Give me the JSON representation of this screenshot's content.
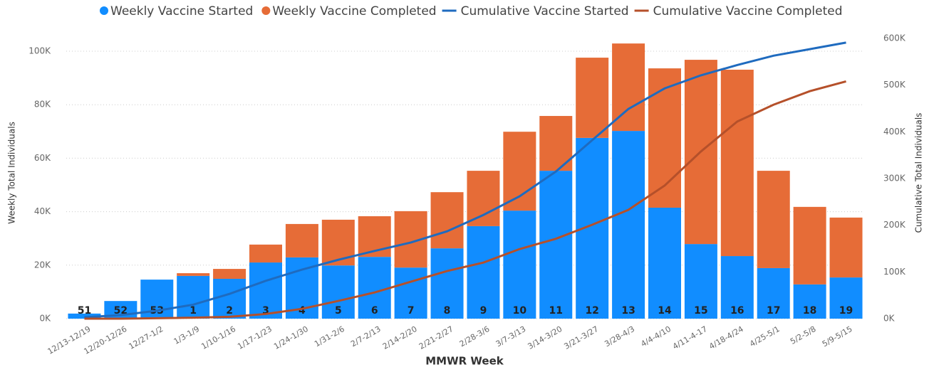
{
  "chart_data": {
    "type": "bar_line",
    "x_label": "MMWR Week",
    "y_label": "Weekly Total Individuals",
    "y2_label": "Cumulative Total Individuals",
    "categories": [
      "12/13-12/19",
      "12/20-12/26",
      "12/27-1/2",
      "1/3-1/9",
      "1/10-1/16",
      "1/17-1/23",
      "1/24-1/30",
      "1/31-2/6",
      "2/7-2/13",
      "2/14-2/20",
      "2/21-2/27",
      "2/28-3/6",
      "3/7-3/13",
      "3/14-3/20",
      "3/21-3/27",
      "3/28-4/3",
      "4/4-4/10",
      "4/11-4-17",
      "4/18-4/24",
      "4/25-5/1",
      "5/2-5/8",
      "5/9-5/15"
    ],
    "week_labels": [
      "51",
      "52",
      "53",
      "1",
      "2",
      "3",
      "4",
      "5",
      "6",
      "7",
      "8",
      "9",
      "10",
      "11",
      "12",
      "13",
      "14",
      "15",
      "16",
      "17",
      "18",
      "19"
    ],
    "series": [
      {
        "name": "Weekly Vaccine Started",
        "kind": "bar",
        "color": "#118dff",
        "values": [
          1900,
          6600,
          14600,
          16000,
          14900,
          21000,
          22900,
          19900,
          23100,
          19100,
          26300,
          34600,
          40400,
          55300,
          67600,
          70200,
          41500,
          27900,
          23400,
          18900,
          12800,
          15400
        ]
      },
      {
        "name": "Weekly Vaccine Completed",
        "kind": "bar",
        "color": "#e66c37",
        "values": [
          0,
          0,
          0,
          1000,
          3700,
          6700,
          12500,
          17100,
          15200,
          21100,
          21000,
          20700,
          29500,
          20500,
          30000,
          32700,
          52100,
          68900,
          69700,
          36400,
          29000,
          22400
        ]
      },
      {
        "name": "Cumulative Vaccine Started",
        "kind": "line",
        "axis": "y2",
        "color": "#1f6bbf",
        "values": [
          3000,
          7600,
          17000,
          30000,
          53000,
          81000,
          105000,
          126000,
          145000,
          163000,
          187000,
          222000,
          262000,
          315000,
          382000,
          449000,
          493000,
          521000,
          543000,
          563000,
          577000,
          591000
        ]
      },
      {
        "name": "Cumulative Vaccine Completed",
        "kind": "line",
        "axis": "y2",
        "color": "#b5502a",
        "values": [
          0,
          0,
          1000,
          2000,
          4000,
          10000,
          21000,
          38000,
          56000,
          79000,
          102000,
          120000,
          149000,
          171000,
          201000,
          233000,
          285000,
          358000,
          422000,
          458000,
          487000,
          508000
        ]
      }
    ],
    "ylim": [
      0,
      104800
    ],
    "yticks": [
      {
        "value": 0,
        "label": "0K"
      },
      {
        "value": 20000,
        "label": "20K"
      },
      {
        "value": 40000,
        "label": "40K"
      },
      {
        "value": 60000,
        "label": "60K"
      },
      {
        "value": 80000,
        "label": "80K"
      },
      {
        "value": 100000,
        "label": "100K"
      }
    ],
    "y2lim": [
      0,
      600000
    ],
    "y2ticks": [
      {
        "value": 0,
        "label": "0K"
      },
      {
        "value": 100000,
        "label": "100K"
      },
      {
        "value": 200000,
        "label": "200K"
      },
      {
        "value": 300000,
        "label": "300K"
      },
      {
        "value": 400000,
        "label": "400K"
      },
      {
        "value": 500000,
        "label": "500K"
      },
      {
        "value": 600000,
        "label": "600K"
      }
    ],
    "grid": true,
    "legend": "top"
  }
}
